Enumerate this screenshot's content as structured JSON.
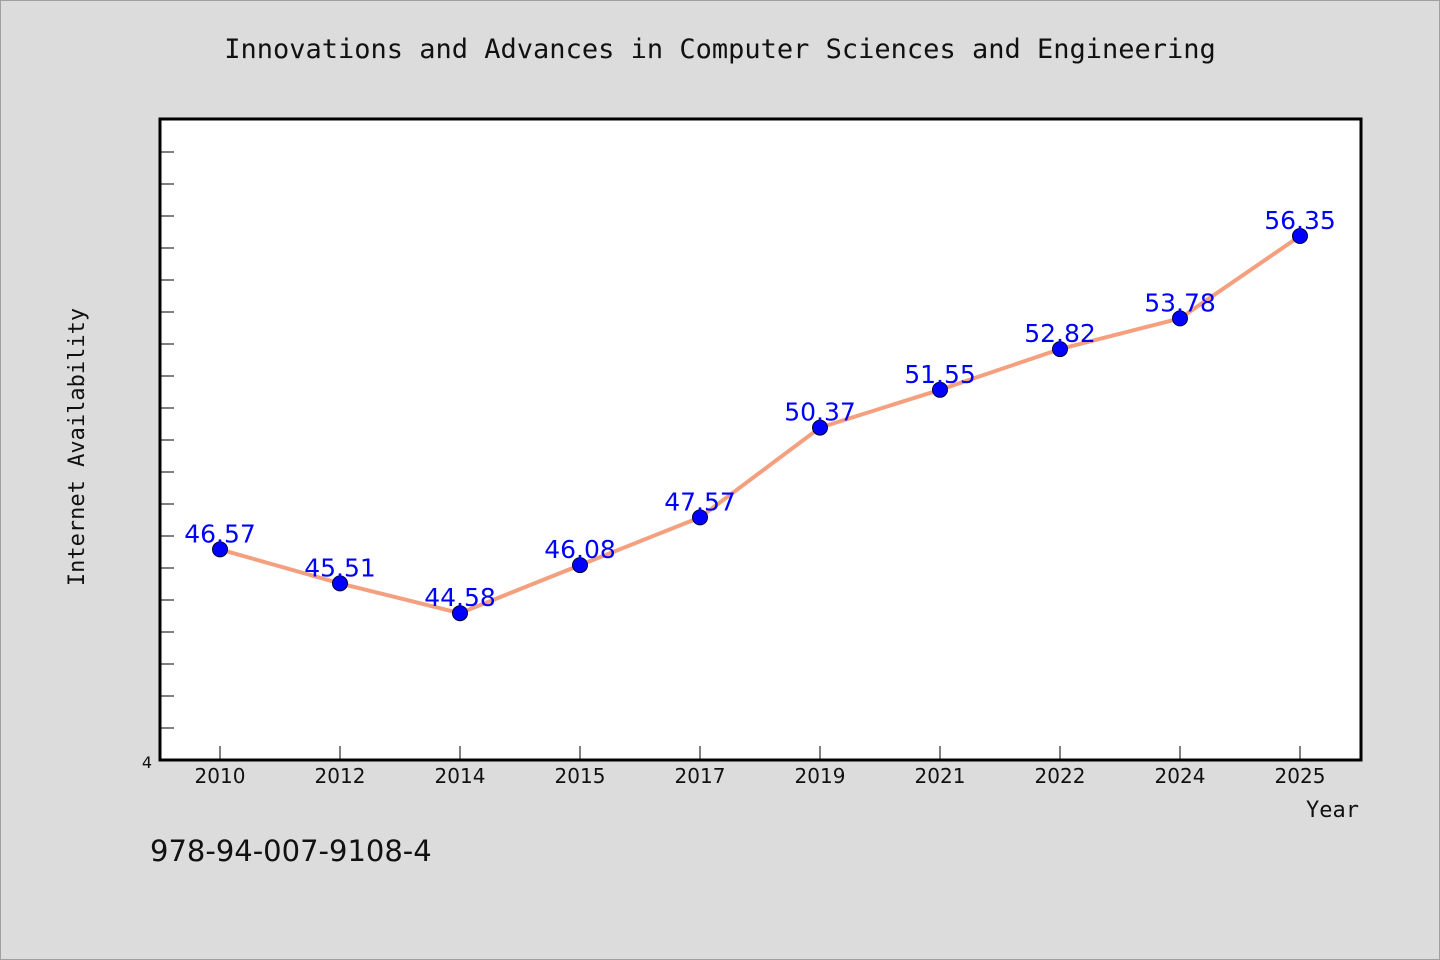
{
  "title": "Innovations and Advances in Computer Sciences and Engineering",
  "footer_text": "978-94-007-9108-4",
  "colors": {
    "background": "#dcdcdc",
    "plot_background": "#ffffff",
    "line": "#f4a07f",
    "marker": "#0000ff",
    "data_label": "#0000ff"
  },
  "chart_data": {
    "type": "line",
    "title": "Innovations and Advances in Computer Sciences and Engineering",
    "xlabel": "Year",
    "ylabel": "Internet Availability",
    "categories": [
      "2010",
      "2012",
      "2014",
      "2015",
      "2017",
      "2019",
      "2021",
      "2022",
      "2024",
      "2025"
    ],
    "series": [
      {
        "values": [
          46.57,
          45.51,
          44.58,
          46.08,
          47.57,
          50.37,
          51.55,
          52.82,
          53.78,
          56.35
        ]
      }
    ],
    "data_labels": [
      "46.57",
      "45.51",
      "44.58",
      "46.08",
      "47.57",
      "50.37",
      "51.55",
      "52.82",
      "53.78",
      "56.35"
    ],
    "y_tick_labels": [
      "4"
    ],
    "ylim": [
      40,
      60
    ],
    "grid": false,
    "legend": "none"
  }
}
